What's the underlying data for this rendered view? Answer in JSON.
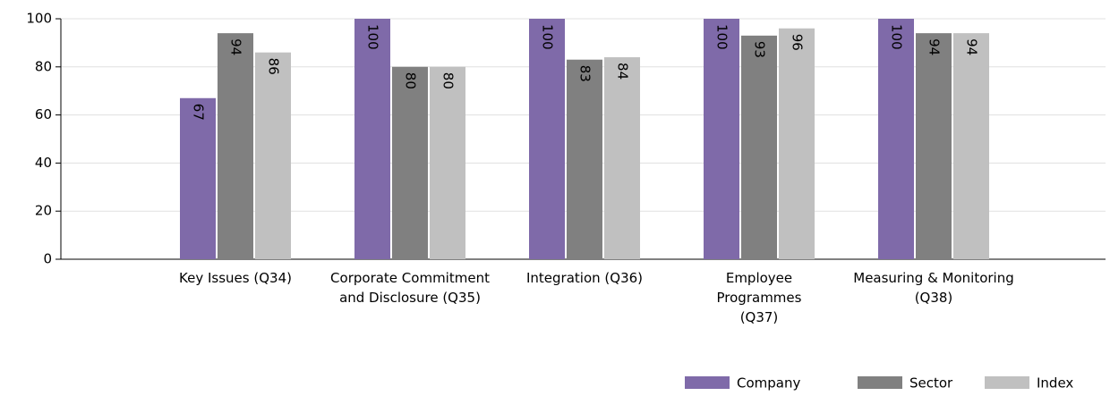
{
  "chart_data": {
    "type": "bar",
    "categories": [
      "Key Issues (Q34)",
      "Corporate Commitment and Disclosure (Q35)",
      "Integration (Q36)",
      "Employee Programmes (Q37)",
      "Measuring & Monitoring (Q38)"
    ],
    "series": [
      {
        "name": "Company",
        "color": "#7f6aa9",
        "values": [
          67,
          100,
          100,
          100,
          100
        ]
      },
      {
        "name": "Sector",
        "color": "#808080",
        "values": [
          94,
          80,
          83,
          93,
          94
        ]
      },
      {
        "name": "Index",
        "color": "#c0c0c0",
        "values": [
          86,
          80,
          84,
          96,
          94
        ]
      }
    ],
    "ylim": [
      0,
      100
    ],
    "yticks": [
      0,
      20,
      40,
      60,
      80,
      100
    ],
    "grid": true,
    "legend": "bottom-right"
  }
}
